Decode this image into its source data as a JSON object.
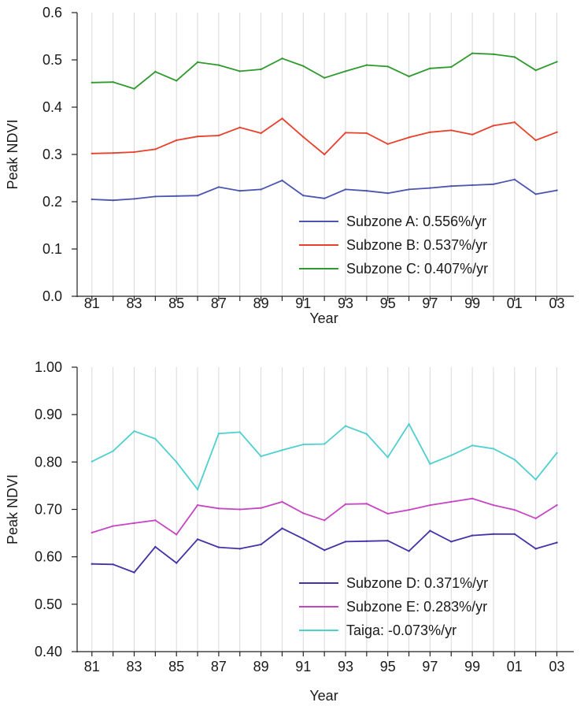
{
  "chart_data": [
    {
      "type": "line",
      "xlabel": "Year",
      "ylabel": "Peak NDVI",
      "x": [
        1981,
        1982,
        1983,
        1984,
        1985,
        1986,
        1987,
        1988,
        1989,
        1990,
        1991,
        1992,
        1993,
        1994,
        1995,
        1996,
        1997,
        1998,
        1999,
        2000,
        2001,
        2002,
        2003
      ],
      "x_tick_labels": [
        "81",
        "83",
        "85",
        "87",
        "89",
        "91",
        "93",
        "95",
        "97",
        "99",
        "01",
        "03"
      ],
      "ylim": [
        0,
        0.6
      ],
      "y_tick_labels": [
        "0.0",
        "0.1",
        "0.2",
        "0.3",
        "0.4",
        "0.5",
        "0.6"
      ],
      "grid": "vertical",
      "legend_position": "bottom-right",
      "series": [
        {
          "name": "Subzone A: 0.556%/yr",
          "color": "#4a55b0",
          "values": [
            0.205,
            0.203,
            0.206,
            0.211,
            0.212,
            0.213,
            0.231,
            0.223,
            0.226,
            0.245,
            0.213,
            0.207,
            0.226,
            0.223,
            0.218,
            0.226,
            0.229,
            0.233,
            0.235,
            0.237,
            0.247,
            0.216,
            0.224
          ]
        },
        {
          "name": "Subzone B: 0.537%/yr",
          "color": "#e8402a",
          "values": [
            0.302,
            0.303,
            0.305,
            0.311,
            0.33,
            0.338,
            0.34,
            0.357,
            0.345,
            0.376,
            0.337,
            0.3,
            0.346,
            0.345,
            0.322,
            0.336,
            0.347,
            0.351,
            0.342,
            0.361,
            0.368,
            0.33,
            0.347
          ]
        },
        {
          "name": "Subzone C: 0.407%/yr",
          "color": "#2e9a2e",
          "values": [
            0.452,
            0.453,
            0.439,
            0.475,
            0.456,
            0.495,
            0.489,
            0.476,
            0.48,
            0.503,
            0.487,
            0.462,
            0.476,
            0.489,
            0.486,
            0.465,
            0.482,
            0.485,
            0.514,
            0.512,
            0.506,
            0.478,
            0.496
          ]
        }
      ]
    },
    {
      "type": "line",
      "xlabel": "Year",
      "ylabel": "Peak NDVI",
      "x": [
        1981,
        1982,
        1983,
        1984,
        1985,
        1986,
        1987,
        1988,
        1989,
        1990,
        1991,
        1992,
        1993,
        1994,
        1995,
        1996,
        1997,
        1998,
        1999,
        2000,
        2001,
        2002,
        2003
      ],
      "x_tick_labels": [
        "81",
        "83",
        "85",
        "87",
        "89",
        "91",
        "93",
        "95",
        "97",
        "99",
        "01",
        "03"
      ],
      "ylim": [
        0.4,
        1.0
      ],
      "y_tick_labels": [
        "0.40",
        "0.50",
        "0.60",
        "0.70",
        "0.80",
        "0.90",
        "1.00"
      ],
      "grid": "vertical",
      "legend_position": "bottom-right",
      "series": [
        {
          "name": "Subzone D: 0.371%/yr",
          "color": "#4433a8",
          "values": [
            0.585,
            0.584,
            0.567,
            0.621,
            0.587,
            0.637,
            0.62,
            0.617,
            0.626,
            0.66,
            0.638,
            0.614,
            0.632,
            0.633,
            0.634,
            0.612,
            0.655,
            0.632,
            0.645,
            0.648,
            0.648,
            0.617,
            0.63
          ]
        },
        {
          "name": "Subzone E: 0.283%/yr",
          "color": "#c744c4",
          "values": [
            0.651,
            0.665,
            0.671,
            0.677,
            0.647,
            0.709,
            0.702,
            0.7,
            0.703,
            0.716,
            0.692,
            0.677,
            0.711,
            0.712,
            0.691,
            0.699,
            0.709,
            0.716,
            0.723,
            0.709,
            0.699,
            0.681,
            0.709
          ]
        },
        {
          "name": "Taiga: -0.073%/yr",
          "color": "#4fcfcf",
          "values": [
            0.801,
            0.823,
            0.865,
            0.849,
            0.8,
            0.742,
            0.86,
            0.863,
            0.812,
            0.825,
            0.837,
            0.838,
            0.876,
            0.859,
            0.81,
            0.88,
            0.796,
            0.814,
            0.835,
            0.828,
            0.805,
            0.763,
            0.819
          ]
        }
      ]
    }
  ]
}
